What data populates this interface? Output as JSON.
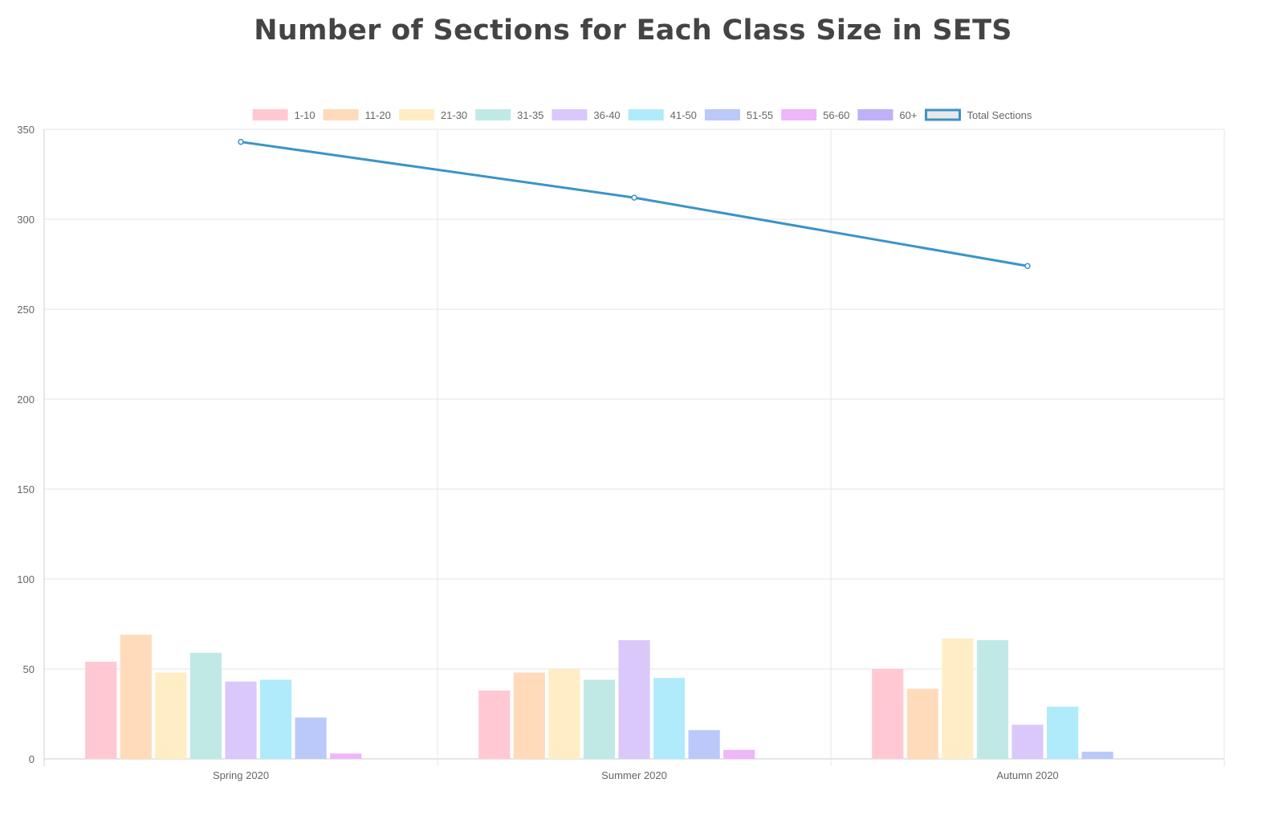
{
  "chart_data": {
    "type": "bar",
    "title": "Number of Sections for Each Class Size in SETS",
    "categories": [
      "Spring 2020",
      "Summer 2020",
      "Autumn 2020"
    ],
    "ylim": [
      0,
      350
    ],
    "yticks": [
      0,
      50,
      100,
      150,
      200,
      250,
      300,
      350
    ],
    "grid": true,
    "legend_position": "top",
    "series": [
      {
        "name": "1-10",
        "type": "bar",
        "color": "#ffc8d3",
        "values": [
          54,
          38,
          50
        ]
      },
      {
        "name": "11-20",
        "type": "bar",
        "color": "#ffdbbb",
        "values": [
          69,
          48,
          39
        ]
      },
      {
        "name": "21-30",
        "type": "bar",
        "color": "#ffedc5",
        "values": [
          48,
          50,
          67
        ]
      },
      {
        "name": "31-35",
        "type": "bar",
        "color": "#c0e9e6",
        "values": [
          59,
          44,
          66
        ]
      },
      {
        "name": "36-40",
        "type": "bar",
        "color": "#dac8fb",
        "values": [
          43,
          66,
          19
        ]
      },
      {
        "name": "41-50",
        "type": "bar",
        "color": "#afebfb",
        "values": [
          44,
          45,
          29
        ]
      },
      {
        "name": "51-55",
        "type": "bar",
        "color": "#bac9fa",
        "values": [
          23,
          16,
          4
        ]
      },
      {
        "name": "56-60",
        "type": "bar",
        "color": "#edb7f9",
        "values": [
          3,
          5,
          0
        ]
      },
      {
        "name": "60+",
        "type": "bar",
        "color": "#c0b0f7",
        "values": [
          0,
          0,
          0
        ]
      },
      {
        "name": "Total Sections",
        "type": "line",
        "color": "#3c93c8",
        "values": [
          343,
          312,
          274
        ]
      }
    ]
  }
}
